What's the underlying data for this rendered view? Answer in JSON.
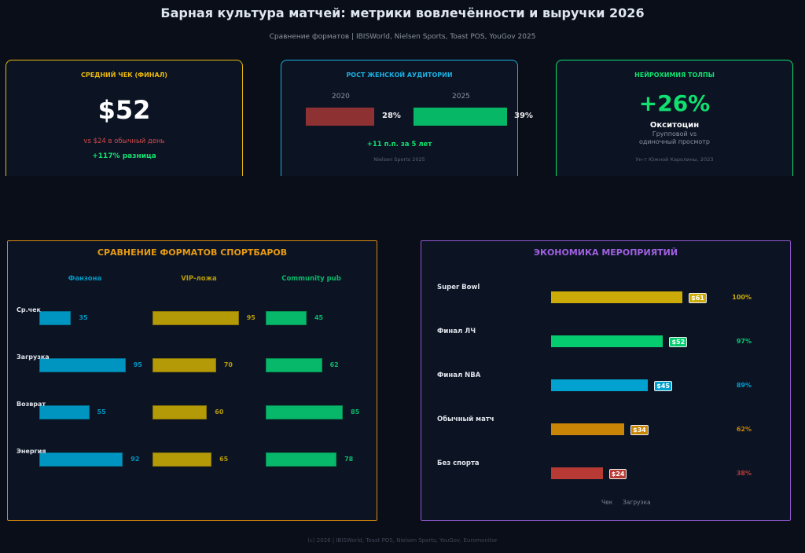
{
  "header": {
    "title": "Барная культура матчей: метрики вовлечённости и выручки 2026",
    "subtitle": "Сравнение форматов  |  IBISWorld, Nielsen Sports, Toast POS, YouGov 2025"
  },
  "cards": [
    {
      "title": "СРЕДНИЙ ЧЕК (ФИНАЛ)",
      "value": "$52",
      "compare": "vs $24 в обычный день",
      "diff": "+117% разница",
      "color": "#e8b90c"
    },
    {
      "title": "РОСТ ЖЕНСКОЙ АУДИТОРИИ",
      "year_a": "2020",
      "year_b": "2025",
      "val_a": "28%",
      "val_b": "39%",
      "share_a": 28,
      "share_b": 39,
      "delta": "+11 п.п. за 5 лет",
      "source": "Nielsen Sports 2025",
      "color": "#1ab0e0"
    },
    {
      "title": "НЕЙРОХИМИЯ ТОЛПЫ",
      "value": "+26%",
      "label": "Окситоцин",
      "desc1": "Групповой vs",
      "desc2": "одиночный просмотр",
      "source": "Ун-т Южной Каролины, 2023",
      "color": "#10e070"
    }
  ],
  "footer": "(c) 2026  |  IBISWorld, Toast POS, Nielsen Sports, YouGov, Euromonitor",
  "chart_data": [
    {
      "type": "bar",
      "title": "СРАВНЕНИЕ ФОРМАТОВ СПОРТБАРОВ",
      "categories": [
        "Ср.чек",
        "Загрузка",
        "Возврат",
        "Энергия"
      ],
      "series": [
        {
          "name": "Фанзона",
          "values": [
            35,
            95,
            55,
            92
          ],
          "color": "#0095c0"
        },
        {
          "name": "VIP-ложа",
          "values": [
            95,
            70,
            60,
            65
          ],
          "color": "#b59a08"
        },
        {
          "name": "Community pub",
          "values": [
            45,
            62,
            85,
            78
          ],
          "color": "#08b86a"
        }
      ],
      "title_color": "#e89a12"
    },
    {
      "type": "bar",
      "title": "ЭКОНОМИКА МЕРОПРИЯТИЙ",
      "categories": [
        "Super Bowl",
        "Финал ЛЧ",
        "Финал NBA",
        "Обычный матч",
        "Без спорта"
      ],
      "check": [
        61,
        52,
        45,
        34,
        24
      ],
      "check_labels": [
        "$61",
        "$52",
        "$45",
        "$34",
        "$24"
      ],
      "load_labels": [
        "100%",
        "97%",
        "89%",
        "62%",
        "38%"
      ],
      "colors": [
        "#ccaa08",
        "#05cc6e",
        "#02a2d0",
        "#c98505",
        "#b83a35"
      ],
      "legend": [
        "Чек",
        "Загрузка"
      ],
      "title_color": "#a060e0"
    }
  ]
}
